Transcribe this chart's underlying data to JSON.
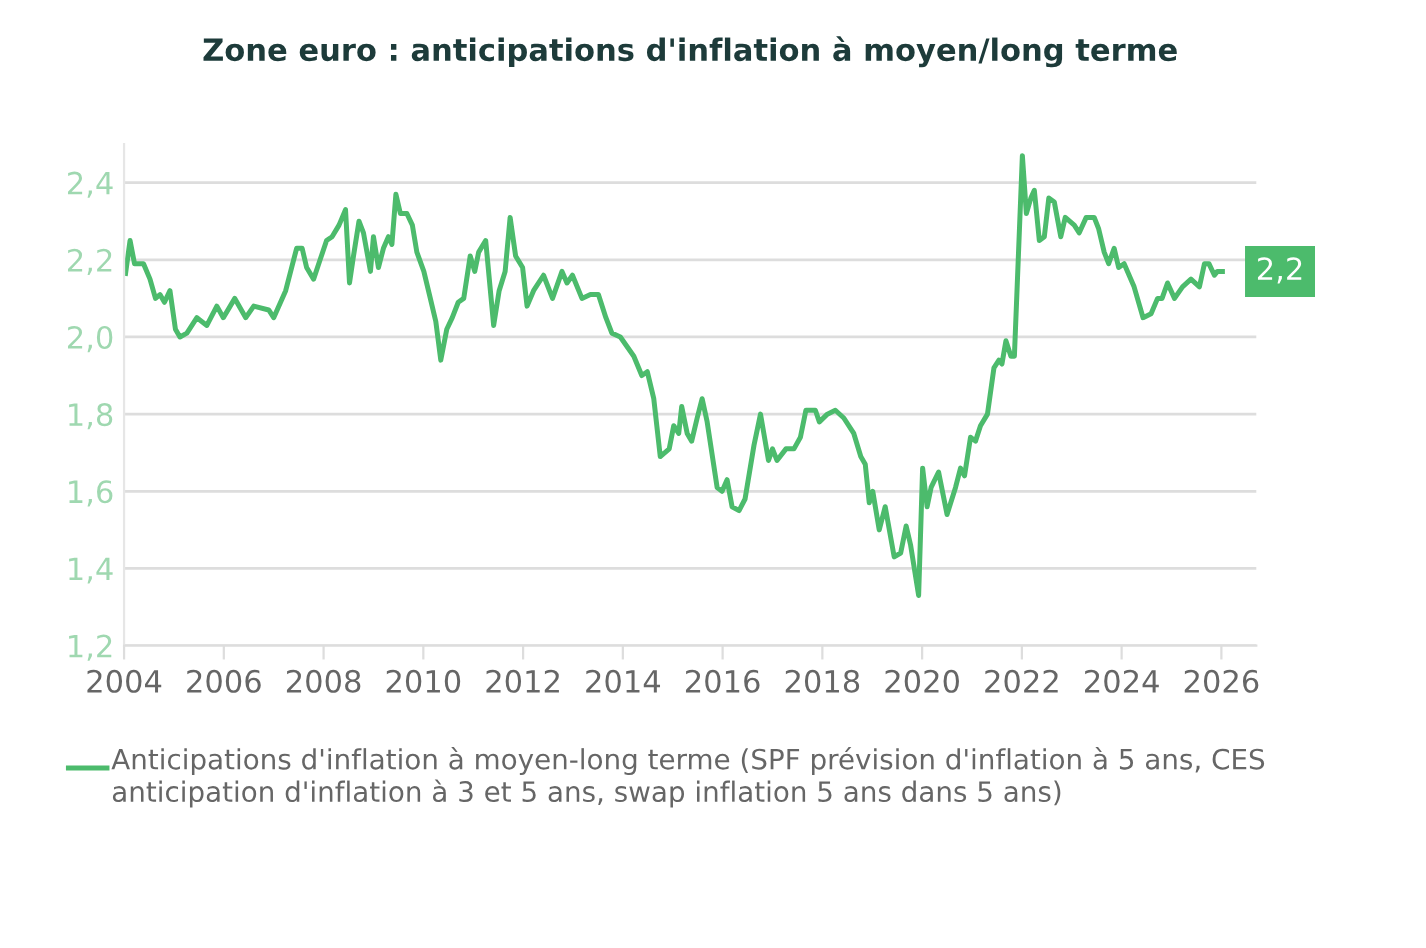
{
  "chart_data": {
    "type": "line",
    "title": "Zone euro : anticipations d'inflation à moyen/long terme",
    "x": [
      2004.03,
      2004.12,
      2004.21,
      2004.39,
      2004.52,
      2004.63,
      2004.72,
      2004.81,
      2004.92,
      2005.03,
      2005.12,
      2005.26,
      2005.46,
      2005.66,
      2005.86,
      2005.99,
      2006.22,
      2006.44,
      2006.6,
      2006.9,
      2007.0,
      2007.24,
      2007.46,
      2007.57,
      2007.66,
      2007.8,
      2007.93,
      2008.06,
      2008.17,
      2008.31,
      2008.44,
      2008.52,
      2008.6,
      2008.71,
      2008.8,
      2008.94,
      2009.0,
      2009.1,
      2009.2,
      2009.3,
      2009.37,
      2009.45,
      2009.54,
      2009.67,
      2009.78,
      2009.87,
      2010.01,
      2010.14,
      2010.25,
      2010.35,
      2010.47,
      2010.58,
      2010.7,
      2010.81,
      2010.94,
      2011.03,
      2011.11,
      2011.25,
      2011.41,
      2011.52,
      2011.64,
      2011.74,
      2011.85,
      2011.99,
      2012.08,
      2012.21,
      2012.41,
      2012.59,
      2012.78,
      2012.88,
      2012.99,
      2013.18,
      2013.35,
      2013.51,
      2013.66,
      2013.78,
      2013.95,
      2014.22,
      2014.38,
      2014.49,
      2014.62,
      2014.75,
      2014.93,
      2015.02,
      2015.12,
      2015.18,
      2015.29,
      2015.38,
      2015.49,
      2015.59,
      2015.69,
      2015.89,
      2015.99,
      2016.09,
      2016.19,
      2016.33,
      2016.45,
      2016.63,
      2016.76,
      2016.92,
      2017.0,
      2017.09,
      2017.27,
      2017.43,
      2017.56,
      2017.67,
      2017.86,
      2017.94,
      2018.1,
      2018.26,
      2018.43,
      2018.63,
      2018.77,
      2018.86,
      2018.94,
      2019.01,
      2019.14,
      2019.26,
      2019.44,
      2019.57,
      2019.68,
      2019.77,
      2019.93,
      2020.01,
      2020.1,
      2020.18,
      2020.33,
      2020.5,
      2020.67,
      2020.77,
      2020.85,
      2020.97,
      2021.07,
      2021.17,
      2021.31,
      2021.44,
      2021.54,
      2021.6,
      2021.68,
      2021.78,
      2021.85,
      2022.01,
      2022.09,
      2022.18,
      2022.25,
      2022.35,
      2022.45,
      2022.54,
      2022.65,
      2022.78,
      2022.87,
      2023.05,
      2023.15,
      2023.29,
      2023.45,
      2023.54,
      2023.65,
      2023.74,
      2023.85,
      2023.94,
      2024.05,
      2024.25,
      2024.43,
      2024.59,
      2024.72,
      2024.81,
      2024.92,
      2025.06,
      2025.22,
      2025.39,
      2025.56,
      2025.66,
      2025.75,
      2025.86,
      2025.92,
      2026.02
    ],
    "series": [
      {
        "name": "Anticipations d'inflation à moyen-long terme (SPF prévision d'inflation à 5 ans, CES anticipation d'inflation à 3 et 5 ans, swap inflation 5 ans dans 5 ans)",
        "color": "#4cbb6c",
        "values": [
          2.165,
          2.25,
          2.19,
          2.19,
          2.15,
          2.1,
          2.11,
          2.09,
          2.12,
          2.02,
          2.0,
          2.01,
          2.05,
          2.03,
          2.08,
          2.05,
          2.1,
          2.05,
          2.08,
          2.07,
          2.05,
          2.12,
          2.23,
          2.23,
          2.18,
          2.15,
          2.2,
          2.25,
          2.26,
          2.29,
          2.33,
          2.14,
          2.21,
          2.3,
          2.27,
          2.17,
          2.26,
          2.18,
          2.23,
          2.26,
          2.24,
          2.37,
          2.32,
          2.32,
          2.29,
          2.22,
          2.17,
          2.1,
          2.04,
          1.94,
          2.02,
          2.05,
          2.09,
          2.1,
          2.21,
          2.17,
          2.22,
          2.25,
          2.03,
          2.12,
          2.17,
          2.31,
          2.21,
          2.18,
          2.08,
          2.12,
          2.16,
          2.1,
          2.17,
          2.14,
          2.16,
          2.1,
          2.11,
          2.11,
          2.05,
          2.01,
          2.0,
          1.95,
          1.9,
          1.91,
          1.84,
          1.69,
          1.71,
          1.77,
          1.75,
          1.82,
          1.75,
          1.73,
          1.79,
          1.84,
          1.78,
          1.61,
          1.6,
          1.63,
          1.56,
          1.55,
          1.58,
          1.72,
          1.8,
          1.68,
          1.71,
          1.68,
          1.71,
          1.71,
          1.74,
          1.81,
          1.81,
          1.78,
          1.8,
          1.81,
          1.79,
          1.75,
          1.69,
          1.67,
          1.57,
          1.6,
          1.5,
          1.56,
          1.43,
          1.44,
          1.51,
          1.46,
          1.33,
          1.66,
          1.56,
          1.61,
          1.65,
          1.54,
          1.61,
          1.66,
          1.64,
          1.74,
          1.73,
          1.77,
          1.8,
          1.92,
          1.94,
          1.93,
          1.99,
          1.95,
          1.95,
          2.47,
          2.32,
          2.36,
          2.38,
          2.25,
          2.26,
          2.36,
          2.35,
          2.26,
          2.31,
          2.29,
          2.27,
          2.31,
          2.31,
          2.28,
          2.22,
          2.19,
          2.23,
          2.18,
          2.19,
          2.13,
          2.05,
          2.06,
          2.1,
          2.1,
          2.14,
          2.1,
          2.13,
          2.15,
          2.13,
          2.19,
          2.19,
          2.16,
          2.17,
          2.17
        ]
      }
    ],
    "annotations": [
      {
        "text": "2,2",
        "x": 2026.02,
        "y": 2.17
      }
    ],
    "xlim": [
      2004,
      2026.7
    ],
    "ylim": [
      1.2,
      2.5
    ],
    "xticks": [
      2004,
      2006,
      2008,
      2010,
      2012,
      2014,
      2016,
      2018,
      2020,
      2022,
      2024,
      2026
    ],
    "yticks": [
      {
        "value": 1.2,
        "label": "1,2"
      },
      {
        "value": 1.4,
        "label": "1,4"
      },
      {
        "value": 1.6,
        "label": "1,6"
      },
      {
        "value": 1.8,
        "label": "1,8"
      },
      {
        "value": 2.0,
        "label": "2,0"
      },
      {
        "value": 2.2,
        "label": "2,2"
      },
      {
        "value": 2.4,
        "label": "2,4"
      }
    ],
    "grid": "y",
    "legend": "bottom",
    "marker": "none",
    "line_style": "solid"
  }
}
